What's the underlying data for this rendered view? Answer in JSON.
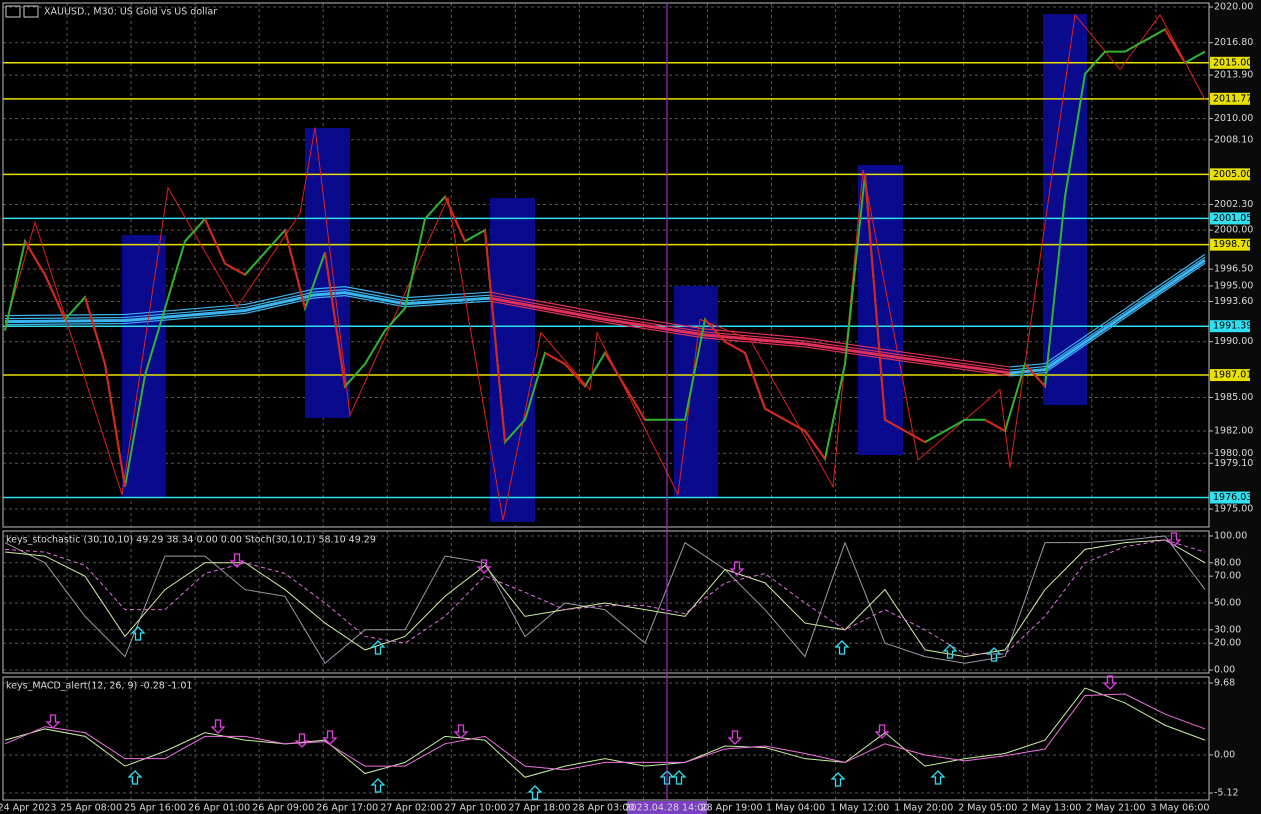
{
  "header": {
    "symbol_title": "XAUUSD., M30:  US Gold vs US dollar"
  },
  "time_axis": {
    "labels": [
      "24 Apr 2023",
      "25 Apr 08:00",
      "25 Apr 16:00",
      "26 Apr 01:00",
      "26 Apr 09:00",
      "26 Apr 17:00",
      "27 Apr 02:00",
      "27 Apr 10:00",
      "27 Apr 18:00",
      "28 Apr 03:00",
      "28 Apr 19:00",
      "1 May 04:00",
      "1 May 12:00",
      "1 May 20:00",
      "2 May 05:00",
      "2 May 13:00",
      "2 May 21:00",
      "3 May 06:00"
    ],
    "crosshair_label": "2023.04.28 14:00"
  },
  "chart_data": [
    {
      "type": "line",
      "up_color": "#2fb52f",
      "down_color": "#e0201c",
      "values": [
        1991,
        1999,
        1996,
        1992,
        1994,
        1988,
        1977,
        1987,
        1993,
        1999,
        2001,
        1997,
        1996,
        1998,
        2000,
        1993,
        1998,
        1986,
        1988,
        1991,
        1993,
        2001,
        2003,
        1999,
        2000,
        1981,
        1983,
        1989,
        1988,
        1986,
        1989,
        1986,
        1983,
        1983,
        1983,
        1992,
        1990,
        1989,
        1984,
        1983,
        1982,
        1979.5,
        1988,
        2005,
        1983,
        1982,
        1981,
        1982,
        1983,
        1983,
        1982,
        1988,
        1986,
        2003,
        2014,
        2016,
        2016,
        2017,
        2018,
        2015,
        2016
      ],
      "moving_averages": [
        {
          "color": "#3cb4f0",
          "x": [
            0,
            6,
            12,
            15.5,
            17,
            20,
            24.25
          ],
          "values": [
            1991.8,
            1991.9,
            1992.8,
            1994.2,
            1994.4,
            1993.4,
            1993.9
          ]
        },
        {
          "color": "#e0305a",
          "x": [
            24.25,
            30,
            35,
            40,
            45,
            50.25
          ],
          "values": [
            1993.9,
            1992.0,
            1990.6,
            1989.8,
            1988.5,
            1987.2
          ]
        },
        {
          "color": "#3cb4f0",
          "x": [
            50.25,
            52,
            60
          ],
          "values": [
            1987.2,
            1987.5,
            1997.3
          ]
        }
      ],
      "zones": [
        {
          "color": "#0a0a8c",
          "from": 5.85,
          "to": 8.05,
          "top": 1999.56,
          "bottom": 1976.08
        },
        {
          "color": "#0a0a8c",
          "from": 15,
          "to": 17.25,
          "top": 2009.15,
          "bottom": 1983.16
        },
        {
          "color": "#0a0a8c",
          "from": 24.25,
          "to": 26.5,
          "top": 2002.88,
          "bottom": 1973.84
        },
        {
          "color": "#0a0a8c",
          "from": 33.45,
          "to": 35.65,
          "top": 1995.0,
          "bottom": 1976.08
        },
        {
          "color": "#0a0a8c",
          "from": 42.65,
          "to": 44.9,
          "top": 2005.84,
          "bottom": 1979.84
        },
        {
          "color": "#0a0a8c",
          "from": 51.9,
          "to": 54.1,
          "top": 2019.37,
          "bottom": 1984.32
        }
      ],
      "zigzag": {
        "color": "#e0201c",
        "x": [
          0,
          1.5,
          5.85,
          8.15,
          11.6,
          14.75,
          15.5,
          17.25,
          22.15,
          24.9,
          26.8,
          29.25,
          29.6,
          33.65,
          34.75,
          37.25,
          41.4,
          42.9,
          45.65,
          49.75,
          50.25,
          53.5,
          55.75,
          57.75,
          60
        ],
        "values": [
          1991.3,
          2000.7,
          1976.3,
          2003.8,
          1993.1,
          2001.5,
          2009.2,
          1983.4,
          2002.9,
          1974.0,
          1990.8,
          1985.7,
          1990.8,
          1976.3,
          1992.0,
          1990.2,
          1977.0,
          2005.4,
          1979.4,
          1985.7,
          1978.7,
          2019.3,
          2014.4,
          2019.3,
          2011.7
        ]
      },
      "levels": [
        {
          "value": 2015,
          "label": "2015.00",
          "color": "#e8e000"
        },
        {
          "value": 2011.77,
          "label": "2011.77",
          "color": "#e8e000"
        },
        {
          "value": 2005,
          "label": "2005.00",
          "color": "#e8e000"
        },
        {
          "value": 2001.05,
          "label": "2001.05",
          "color": "#30e0f0"
        },
        {
          "value": 1998.7,
          "label": "1998.70",
          "color": "#e8e000"
        },
        {
          "value": 1991.39,
          "label": "1991.39",
          "color": "#30e0f0"
        },
        {
          "value": 1987.01,
          "label": "1987.01",
          "color": "#e8e000"
        },
        {
          "value": 1976.03,
          "label": "1976.03",
          "color": "#30e0f0"
        }
      ],
      "ylim": [
        1973.39,
        2020.36
      ],
      "yticks": [
        {
          "value": 2020,
          "label": "2020.00"
        },
        {
          "value": 2016.8,
          "label": "2016.80"
        },
        {
          "value": 2013.9,
          "label": "2013.90"
        },
        {
          "value": 2010,
          "label": "2010.00"
        },
        {
          "value": 2008.1,
          "label": "2008.10"
        },
        {
          "value": 2002.3,
          "label": "2002.30"
        },
        {
          "value": 2000,
          "label": "2000.00"
        },
        {
          "value": 1996.5,
          "label": "1996.50"
        },
        {
          "value": 1995,
          "label": "1995.00"
        },
        {
          "value": 1993.6,
          "label": "1993.60"
        },
        {
          "value": 1990,
          "label": "1990.00"
        },
        {
          "value": 1985,
          "label": "1985.00"
        },
        {
          "value": 1982,
          "label": "1982.00"
        },
        {
          "value": 1980,
          "label": "1980.00"
        },
        {
          "value": 1979.1,
          "label": "1979.10"
        },
        {
          "value": 1975,
          "label": "1975.00"
        }
      ]
    },
    {
      "type": "line",
      "title": "keys_stochastic (30,10,10) 49.29 38.34 0.00 0.00 Stoch(30,10,1) 58.10 49.29",
      "lines": [
        {
          "color": "#9a9aa8",
          "dash": false,
          "values": [
            95,
            80,
            40,
            10,
            85,
            85,
            60,
            55,
            5,
            30,
            30,
            85,
            80,
            25,
            50,
            45,
            20,
            95,
            75,
            45,
            10,
            95,
            20,
            10,
            5,
            10,
            95,
            95,
            97,
            100,
            60
          ]
        },
        {
          "color": "#d0f0a0",
          "dash": false,
          "values": [
            88,
            85,
            70,
            25,
            60,
            80,
            80,
            60,
            35,
            15,
            25,
            55,
            78,
            40,
            45,
            50,
            45,
            40,
            75,
            65,
            35,
            30,
            60,
            15,
            10,
            15,
            60,
            90,
            95,
            97,
            80
          ]
        },
        {
          "color": "#e070e0",
          "dash": true,
          "values": [
            90,
            88,
            78,
            45,
            45,
            72,
            80,
            72,
            50,
            25,
            20,
            40,
            70,
            58,
            45,
            48,
            48,
            42,
            65,
            72,
            50,
            30,
            45,
            30,
            12,
            12,
            40,
            80,
            92,
            97,
            88
          ]
        }
      ],
      "ylim": [
        -2.24,
        103.7
      ],
      "yticks": [
        {
          "value": 100,
          "label": "100.00"
        },
        {
          "value": 80,
          "label": "80.00"
        },
        {
          "value": 70,
          "label": "70.00"
        },
        {
          "value": 50,
          "label": "50.00"
        },
        {
          "value": 30,
          "label": "30.00"
        },
        {
          "value": 20,
          "label": "20.00"
        },
        {
          "value": 0,
          "label": "0.00"
        }
      ]
    },
    {
      "type": "line",
      "title": "keys_MACD_alert(12, 26, 9) -0.28 -1.01",
      "lines": [
        {
          "color": "#c8f0a0",
          "dash": false,
          "values": [
            2.0,
            3.5,
            2.5,
            -1.5,
            0.5,
            3.0,
            2.0,
            1.5,
            2.0,
            -2.5,
            -1.0,
            2.5,
            2.0,
            -3.0,
            -1.5,
            -0.5,
            -1.5,
            -1.0,
            1.2,
            1.0,
            -0.5,
            -1.0,
            3.0,
            -1.5,
            -0.5,
            0.2,
            2.0,
            9.0,
            7.0,
            4.0,
            2.0
          ]
        },
        {
          "color": "#f070e0",
          "dash": false,
          "values": [
            1.5,
            3.8,
            3.0,
            -0.5,
            -0.5,
            2.5,
            2.5,
            1.5,
            1.8,
            -1.5,
            -1.5,
            1.5,
            2.5,
            -1.5,
            -2.0,
            -1.0,
            -1.0,
            -1.0,
            0.8,
            1.2,
            0.2,
            -1.0,
            1.5,
            0.0,
            -0.8,
            -0.1,
            0.8,
            8.0,
            8.2,
            5.5,
            3.5
          ]
        }
      ],
      "ylim": [
        -6.06,
        10.49
      ],
      "yticks": [
        {
          "value": 9.68,
          "label": "9.68"
        },
        {
          "value": 0,
          "label": "0.00"
        },
        {
          "value": -5.12,
          "label": "-5.12"
        }
      ]
    }
  ]
}
